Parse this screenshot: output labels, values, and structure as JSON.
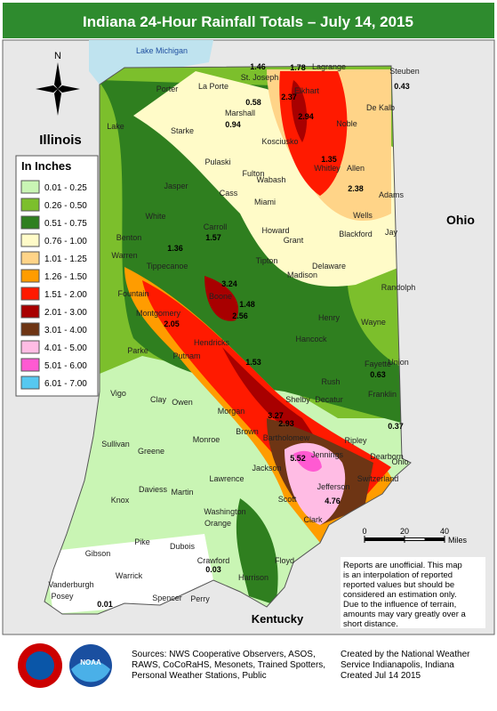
{
  "header": {
    "title": "Indiana 24-Hour Rainfall Totals – July 14, 2015"
  },
  "map": {
    "lake": "Lake Michigan",
    "states": [
      "Illinois",
      "Ohio",
      "Kentucky"
    ],
    "counties": [
      "Lake",
      "Porter",
      "La Porte",
      "St. Joseph",
      "Elkhart",
      "Lagrange",
      "Steuben",
      "Noble",
      "De Kalb",
      "Marshall",
      "Starke",
      "Kosciusko",
      "Whitley",
      "Allen",
      "Pulaski",
      "Fulton",
      "Jasper",
      "Cass",
      "Wabash",
      "Miami",
      "Carroll",
      "Benton",
      "White",
      "Warren",
      "Tippecanoe",
      "Howard",
      "Grant",
      "Blackford",
      "Jay",
      "Adams",
      "Wells",
      "Tipton",
      "Madison",
      "Delaware",
      "Randolph",
      "Fountain",
      "Montgomery",
      "Boone",
      "Henry",
      "Wayne",
      "Parke",
      "Putnam",
      "Hendricks",
      "Hancock",
      "Fayette",
      "Union",
      "Vigo",
      "Clay",
      "Owen",
      "Morgan",
      "Shelby",
      "Rush",
      "Decatur",
      "Franklin",
      "Brown",
      "Monroe",
      "Bartholomew",
      "Ripley",
      "Dearborn",
      "Ohio",
      "Sullivan",
      "Greene",
      "Lawrence",
      "Jackson",
      "Jennings",
      "Switzerland",
      "Jefferson",
      "Scott",
      "Knox",
      "Daviess",
      "Martin",
      "Washington",
      "Orange",
      "Clark",
      "Gibson",
      "Pike",
      "Dubois",
      "Crawford",
      "Floyd",
      "Harrison",
      "Warrick",
      "Vanderburgh",
      "Posey",
      "Spencer",
      "Perry"
    ],
    "values": [
      1.46,
      1.78,
      2.37,
      2.94,
      0.94,
      3.24,
      2.05,
      3.27,
      2.93,
      5.52,
      4.76,
      1.36,
      1.57,
      0.58,
      0.43,
      1.35,
      2.38,
      1.48,
      2.56,
      1.53,
      0.63,
      0.37,
      0.01,
      0.03
    ]
  },
  "legend": {
    "title": "In Inches",
    "items": [
      {
        "label": "0.01 - 0.25",
        "color": "#c9f5b4"
      },
      {
        "label": "0.26 - 0.50",
        "color": "#7cbf2c"
      },
      {
        "label": "0.51 - 0.75",
        "color": "#2f7f1f"
      },
      {
        "label": "0.76 - 1.00",
        "color": "#fffbc8"
      },
      {
        "label": "1.01 - 1.25",
        "color": "#ffd488"
      },
      {
        "label": "1.26 - 1.50",
        "color": "#ff9c00"
      },
      {
        "label": "1.51 - 2.00",
        "color": "#ff1a00"
      },
      {
        "label": "2.01 - 3.00",
        "color": "#a80000"
      },
      {
        "label": "3.01 - 4.00",
        "color": "#6e3514"
      },
      {
        "label": "4.01 - 5.00",
        "color": "#ffbce4"
      },
      {
        "label": "5.01 - 6.00",
        "color": "#ff5ad2"
      },
      {
        "label": "6.01 - 7.00",
        "color": "#56c8f0"
      }
    ]
  },
  "scale": {
    "ticks": [
      0,
      20,
      40
    ],
    "unit": "Miles"
  },
  "notes": [
    "Reports are unofficial. This map",
    "is an interpolation of reported",
    "reported values but should be",
    "considered an estimation only.",
    "Due to the influence of terrain,",
    "amounts may vary greatly over a",
    "short distance."
  ],
  "footer": {
    "sources": [
      "Sources: NWS Cooperative Observers, ASOS,",
      "RAWS, CoCoRaHS, Mesonets, Trained Spotters,",
      "Personal Weather Stations, Public"
    ],
    "credit": [
      "Created by the National Weather",
      "Service Indianapolis, Indiana",
      "Created Jul 14 2015"
    ],
    "logo": "NOAA"
  }
}
